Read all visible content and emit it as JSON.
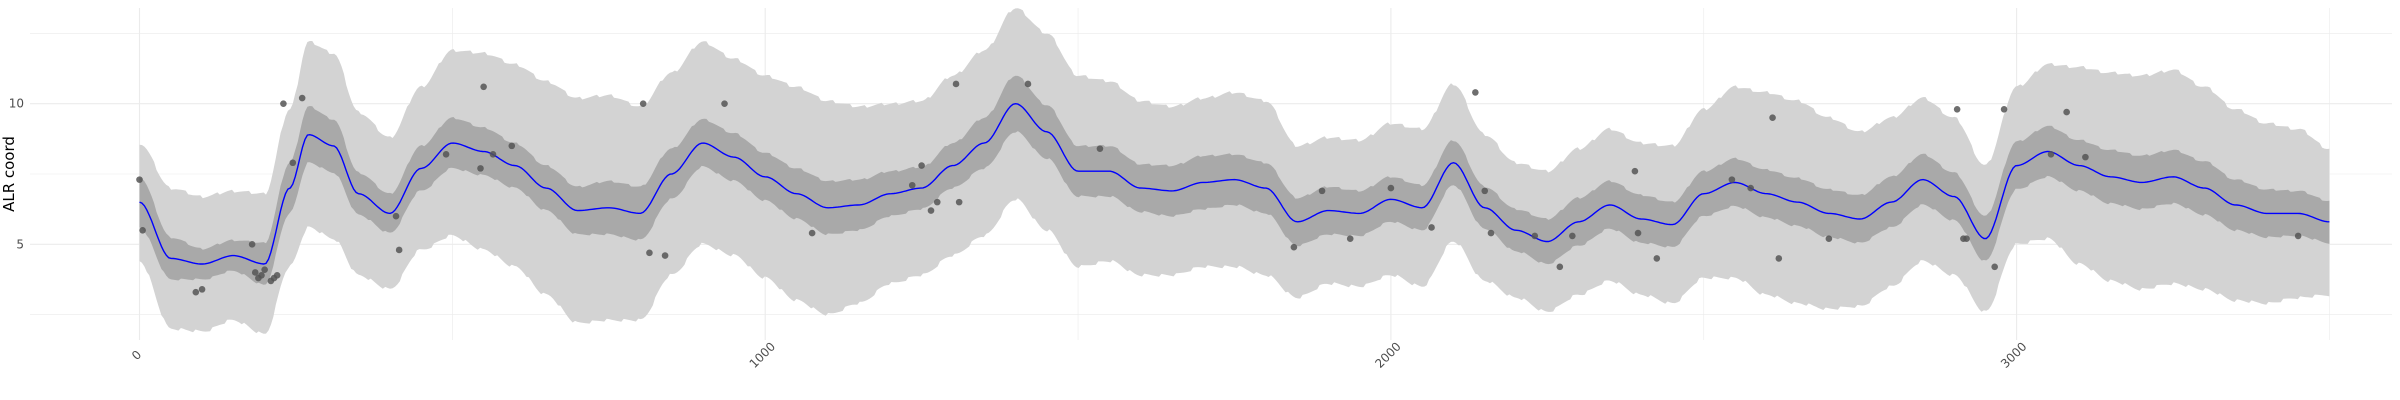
{
  "chart_data": {
    "type": "line",
    "title": "",
    "xlabel": "",
    "ylabel": "ALR coord",
    "xlim": [
      -175,
      3600
    ],
    "ylim": [
      1.6,
      13.4
    ],
    "x_ticks": [
      0,
      1000,
      2000,
      3000
    ],
    "x_tick_labels": [
      "0",
      "1000",
      "2000",
      "3000"
    ],
    "y_ticks": [
      5,
      10
    ],
    "y_tick_labels": [
      "5",
      "10"
    ],
    "x_tick_label_rotation_deg": -45,
    "grid": true,
    "legend": "none",
    "colors": {
      "fit_line": "#0000ff",
      "inner_band": "#a9a9a9",
      "outer_band": "#d3d3d3",
      "points": "#555555",
      "grid": "#ebebeb"
    },
    "fit": {
      "x": [
        0,
        50,
        100,
        150,
        200,
        240,
        270,
        310,
        350,
        400,
        450,
        500,
        550,
        600,
        650,
        700,
        750,
        800,
        850,
        900,
        950,
        1000,
        1050,
        1100,
        1150,
        1200,
        1250,
        1300,
        1350,
        1400,
        1450,
        1500,
        1550,
        1600,
        1650,
        1700,
        1750,
        1800,
        1850,
        1900,
        1950,
        2000,
        2050,
        2100,
        2150,
        2200,
        2250,
        2300,
        2350,
        2400,
        2450,
        2500,
        2550,
        2600,
        2650,
        2700,
        2750,
        2800,
        2850,
        2900,
        2950,
        3000,
        3050,
        3100,
        3150,
        3200,
        3250,
        3300,
        3350,
        3400,
        3450,
        3500
      ],
      "y": [
        6.5,
        4.5,
        4.3,
        4.6,
        4.3,
        7.0,
        8.9,
        8.5,
        6.8,
        6.1,
        7.7,
        8.6,
        8.3,
        7.8,
        7.0,
        6.2,
        6.3,
        6.1,
        7.5,
        8.6,
        8.1,
        7.4,
        6.8,
        6.3,
        6.4,
        6.8,
        7.0,
        7.8,
        8.6,
        10.0,
        9.0,
        7.6,
        7.6,
        7.0,
        6.9,
        7.2,
        7.3,
        7.0,
        5.8,
        6.2,
        6.1,
        6.6,
        6.3,
        7.9,
        6.3,
        5.5,
        5.1,
        5.8,
        6.4,
        5.9,
        5.7,
        6.8,
        7.2,
        6.8,
        6.5,
        6.1,
        5.9,
        6.5,
        7.3,
        6.7,
        5.2,
        7.8,
        8.3,
        7.8,
        7.4,
        7.2,
        7.4,
        7.0,
        6.4,
        6.1,
        6.1,
        5.8
      ],
      "inner_half_width": [
        0.9,
        0.75,
        0.55,
        0.55,
        0.75,
        0.9,
        1.0,
        0.95,
        0.75,
        0.7,
        0.8,
        0.9,
        0.85,
        0.8,
        0.8,
        0.85,
        0.95,
        0.95,
        0.9,
        0.85,
        0.85,
        0.85,
        0.9,
        0.95,
        0.9,
        0.8,
        0.75,
        0.8,
        0.9,
        1.0,
        0.95,
        0.9,
        0.9,
        0.85,
        0.9,
        0.95,
        0.9,
        0.9,
        0.85,
        0.85,
        0.8,
        0.8,
        0.8,
        0.8,
        0.75,
        0.75,
        0.8,
        0.85,
        0.85,
        0.85,
        0.8,
        0.8,
        0.85,
        0.85,
        0.85,
        0.85,
        0.85,
        0.9,
        0.9,
        0.85,
        0.8,
        0.85,
        0.9,
        0.9,
        0.95,
        0.95,
        0.95,
        0.95,
        0.9,
        0.85,
        0.8,
        0.75
      ],
      "outer_half_width": [
        2.1,
        2.5,
        2.4,
        2.3,
        2.5,
        2.8,
        3.3,
        3.3,
        2.9,
        2.7,
        2.9,
        3.3,
        3.5,
        3.6,
        3.8,
        4.0,
        4.0,
        3.8,
        3.6,
        3.6,
        3.5,
        3.6,
        3.8,
        3.8,
        3.5,
        3.2,
        3.1,
        3.2,
        3.3,
        3.4,
        3.5,
        3.4,
        3.2,
        3.1,
        3.0,
        3.0,
        3.1,
        3.1,
        2.7,
        2.6,
        2.6,
        2.7,
        2.8,
        2.8,
        2.6,
        2.4,
        2.5,
        2.6,
        2.7,
        2.7,
        2.8,
        3.0,
        3.4,
        3.6,
        3.6,
        3.4,
        3.1,
        3.0,
        2.9,
        2.8,
        2.6,
        2.8,
        3.1,
        3.5,
        3.7,
        3.8,
        3.8,
        3.6,
        3.4,
        3.2,
        3.0,
        2.6
      ]
    },
    "points": {
      "x": [
        0,
        5,
        90,
        100,
        180,
        185,
        190,
        195,
        200,
        210,
        215,
        220,
        230,
        245,
        260,
        410,
        415,
        490,
        545,
        550,
        565,
        595,
        805,
        815,
        840,
        935,
        1075,
        1235,
        1250,
        1265,
        1275,
        1305,
        1310,
        1420,
        1535,
        1845,
        1890,
        1935,
        2000,
        2065,
        2135,
        2150,
        2160,
        2230,
        2270,
        2290,
        2390,
        2395,
        2425,
        2545,
        2575,
        2610,
        2620,
        2700,
        2905,
        2915,
        2920,
        2965,
        2980,
        3055,
        3080,
        3110,
        3450
      ],
      "y": [
        7.3,
        5.5,
        3.3,
        3.4,
        5.0,
        4.0,
        3.8,
        3.9,
        4.1,
        3.7,
        3.8,
        3.9,
        10.0,
        7.9,
        10.2,
        6.0,
        4.8,
        8.2,
        7.7,
        10.6,
        8.2,
        8.5,
        10.0,
        4.7,
        4.6,
        10.0,
        5.4,
        7.1,
        7.8,
        6.2,
        6.5,
        10.7,
        6.5,
        10.7,
        8.4,
        4.9,
        6.9,
        5.2,
        7.0,
        5.6,
        10.4,
        6.9,
        5.4,
        5.3,
        4.2,
        5.3,
        7.6,
        5.4,
        4.5,
        7.3,
        7.0,
        9.5,
        4.5,
        5.2,
        9.8,
        5.2,
        5.2,
        4.2,
        9.8,
        8.2,
        9.7,
        8.1,
        5.3
      ]
    }
  }
}
